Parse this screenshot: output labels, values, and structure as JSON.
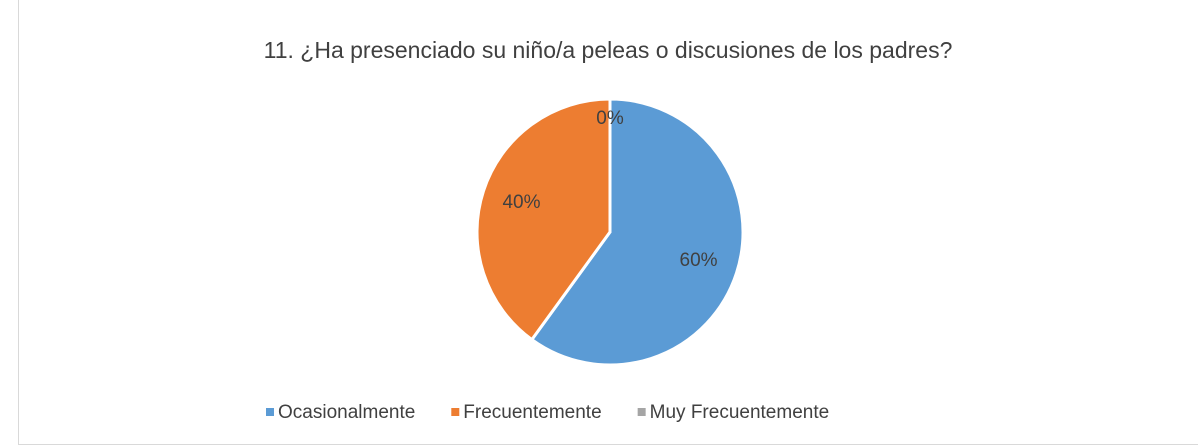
{
  "chart_data": {
    "type": "pie",
    "title": "11. ¿Ha presenciado su niño/a peleas o discusiones de los padres?",
    "categories": [
      "Ocasionalmente",
      "Frecuentemente",
      "Muy Frecuentemente"
    ],
    "values": [
      60,
      40,
      0
    ],
    "value_labels": [
      "60%",
      "40%",
      "0%"
    ],
    "colors": [
      "#5b9bd5",
      "#ed7d31",
      "#a5a5a5"
    ],
    "legend": "bottom"
  }
}
